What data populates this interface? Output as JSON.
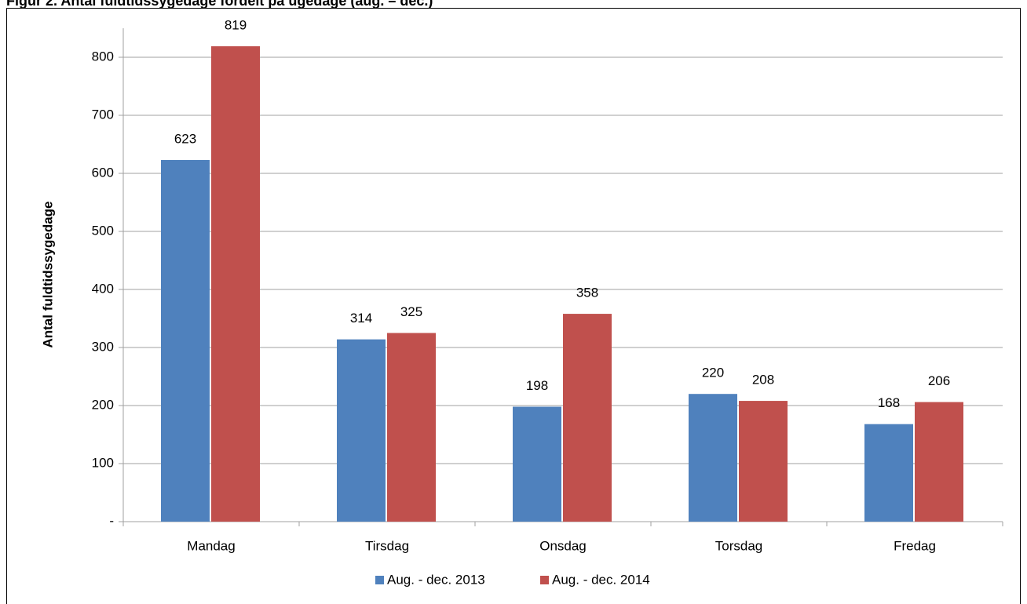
{
  "chart_data": {
    "type": "bar",
    "title": "Figur 2. Antal fuldtidssygedage fordelt på ugedage (aug. – dec.)",
    "y_label": "Antal fuldtidssygedage",
    "categories": [
      "Mandag",
      "Tirsdag",
      "Onsdag",
      "Torsdag",
      "Fredag"
    ],
    "series": [
      {
        "name": "Aug. - dec. 2013",
        "color": "#4f81bd",
        "values": [
          623,
          314,
          198,
          220,
          168
        ]
      },
      {
        "name": "Aug. - dec. 2014",
        "color": "#c0504d",
        "values": [
          819,
          325,
          358,
          208,
          206
        ]
      }
    ],
    "ylim": [
      0,
      850
    ],
    "yticks": [
      {
        "value": 0,
        "label": "-"
      },
      100,
      200,
      300,
      400,
      500,
      600,
      700,
      800
    ],
    "grid": true,
    "legend": "bottom"
  }
}
